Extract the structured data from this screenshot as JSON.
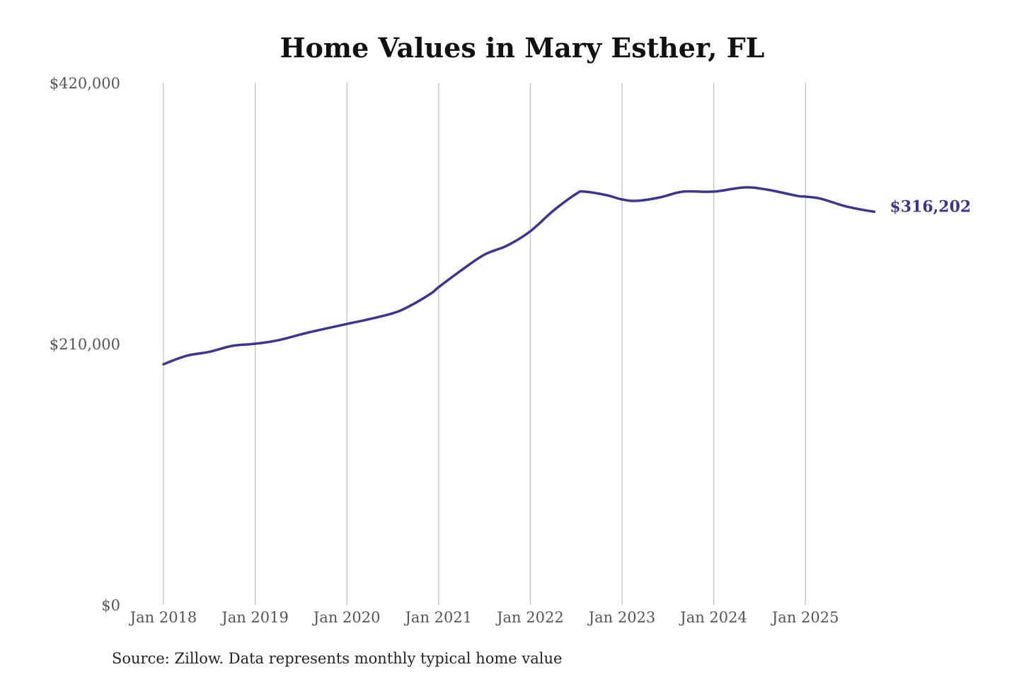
{
  "chart_data": {
    "type": "line",
    "title": "Home Values in Mary Esther, FL",
    "source": "Source: Zillow. Data represents monthly typical home value",
    "xlabel": "",
    "ylabel": "",
    "ylim": [
      0,
      420000
    ],
    "y_ticks": [
      {
        "value": 0,
        "label": "$0"
      },
      {
        "value": 210000,
        "label": "$210,000"
      },
      {
        "value": 420000,
        "label": "$420,000"
      }
    ],
    "x_ticks": [
      {
        "date": "2018-01",
        "label": "Jan 2018"
      },
      {
        "date": "2019-01",
        "label": "Jan 2019"
      },
      {
        "date": "2020-01",
        "label": "Jan 2020"
      },
      {
        "date": "2021-01",
        "label": "Jan 2021"
      },
      {
        "date": "2022-01",
        "label": "Jan 2022"
      },
      {
        "date": "2023-01",
        "label": "Jan 2023"
      },
      {
        "date": "2024-01",
        "label": "Jan 2024"
      },
      {
        "date": "2025-01",
        "label": "Jan 2025"
      }
    ],
    "grid": "vertical",
    "line_color": "#3a3593",
    "end_label": "$316,202",
    "series": [
      {
        "points": [
          [
            "2018-01",
            193500
          ],
          [
            "2018-04",
            200300
          ],
          [
            "2018-07",
            203500
          ],
          [
            "2018-10",
            208300
          ],
          [
            "2019-01",
            210000
          ],
          [
            "2019-04",
            212800
          ],
          [
            "2019-08",
            219100
          ],
          [
            "2020-01",
            225900
          ],
          [
            "2020-04",
            229900
          ],
          [
            "2020-07",
            234500
          ],
          [
            "2020-09",
            239600
          ],
          [
            "2020-12",
            250400
          ],
          [
            "2021-01",
            255500
          ],
          [
            "2021-04",
            269200
          ],
          [
            "2021-07",
            281700
          ],
          [
            "2021-10",
            289100
          ],
          [
            "2022-01",
            300500
          ],
          [
            "2022-04",
            317000
          ],
          [
            "2022-07",
            330600
          ],
          [
            "2022-08",
            332400
          ],
          [
            "2022-11",
            329500
          ],
          [
            "2023-01",
            326100
          ],
          [
            "2023-03",
            325000
          ],
          [
            "2023-06",
            327800
          ],
          [
            "2023-09",
            332400
          ],
          [
            "2024-01",
            332400
          ],
          [
            "2024-05",
            335800
          ],
          [
            "2024-08",
            334000
          ],
          [
            "2024-12",
            328900
          ],
          [
            "2025-01",
            328400
          ],
          [
            "2025-03",
            326700
          ],
          [
            "2025-06",
            321000
          ],
          [
            "2025-08",
            318300
          ],
          [
            "2025-10",
            316202
          ]
        ]
      }
    ]
  }
}
